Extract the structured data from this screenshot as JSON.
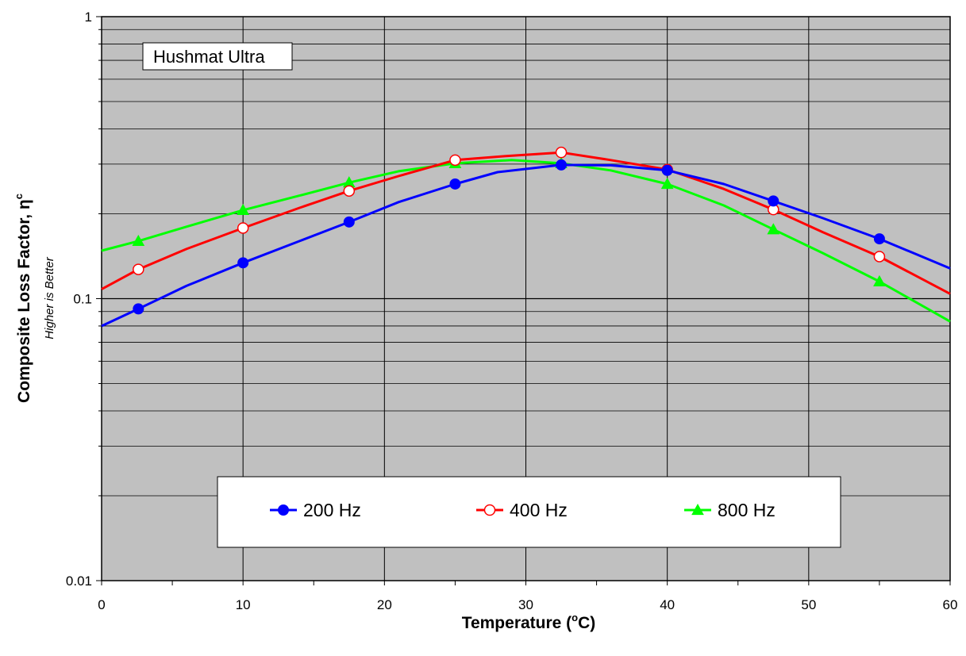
{
  "chart_data": {
    "type": "line",
    "annotation": "Hushmat Ultra",
    "xlabel": "Temperature (°C)",
    "xlabel_main": "Temperature (",
    "xlabel_sup": "o",
    "xlabel_unit": "C)",
    "ylabel": "Composite Loss Factor,  ηc",
    "ylabel_main": "Composite Loss Factor,  η",
    "ylabel_sup": "c",
    "ylabel_sub": "Higher is Better",
    "xlim": [
      0,
      60
    ],
    "ylim": [
      0.01,
      1
    ],
    "yscale": "log",
    "x_ticks": [
      0,
      10,
      20,
      30,
      40,
      50,
      60
    ],
    "x_tick_labels": [
      "0",
      "10",
      "20",
      "30",
      "40",
      "50",
      "60"
    ],
    "y_ticks": [
      0.01,
      0.1,
      1
    ],
    "y_tick_labels": [
      "0.01",
      "0.1",
      "1"
    ],
    "grid": true,
    "legend_position": "bottom-center",
    "series": [
      {
        "name": "200 Hz",
        "color": "#0000ff",
        "marker": "filled-circle",
        "x": [
          2.6,
          10,
          17.5,
          25,
          32.5,
          40,
          47.5,
          55
        ],
        "y": [
          0.092,
          0.134,
          0.187,
          0.255,
          0.298,
          0.285,
          0.222,
          0.163
        ],
        "curve": [
          [
            0,
            0.08
          ],
          [
            2.6,
            0.092
          ],
          [
            6,
            0.111
          ],
          [
            10,
            0.134
          ],
          [
            14,
            0.16
          ],
          [
            17.5,
            0.187
          ],
          [
            21,
            0.22
          ],
          [
            25,
            0.255
          ],
          [
            28,
            0.281
          ],
          [
            32.5,
            0.298
          ],
          [
            36,
            0.297
          ],
          [
            40,
            0.285
          ],
          [
            44,
            0.255
          ],
          [
            47.5,
            0.222
          ],
          [
            51,
            0.193
          ],
          [
            55,
            0.163
          ],
          [
            60,
            0.128
          ]
        ]
      },
      {
        "name": "400 Hz",
        "color": "#ff0000",
        "marker": "open-circle",
        "x": [
          2.6,
          10,
          17.5,
          25,
          32.5,
          40,
          47.5,
          55
        ],
        "y": [
          0.127,
          0.178,
          0.241,
          0.31,
          0.33,
          0.287,
          0.207,
          0.141
        ],
        "curve": [
          [
            0,
            0.108
          ],
          [
            2.6,
            0.127
          ],
          [
            6,
            0.15
          ],
          [
            10,
            0.178
          ],
          [
            14,
            0.21
          ],
          [
            17.5,
            0.241
          ],
          [
            21,
            0.272
          ],
          [
            25,
            0.31
          ],
          [
            28.5,
            0.32
          ],
          [
            32.5,
            0.33
          ],
          [
            36,
            0.31
          ],
          [
            40,
            0.287
          ],
          [
            44,
            0.245
          ],
          [
            47.5,
            0.207
          ],
          [
            51,
            0.172
          ],
          [
            55,
            0.141
          ],
          [
            60,
            0.104
          ]
        ]
      },
      {
        "name": "800 Hz",
        "color": "#00ff00",
        "marker": "filled-triangle",
        "x": [
          2.6,
          10,
          17.5,
          25,
          32.5,
          40,
          47.5,
          55
        ],
        "y": [
          0.16,
          0.206,
          0.258,
          0.302,
          0.302,
          0.255,
          0.176,
          0.115
        ],
        "curve": [
          [
            0,
            0.148
          ],
          [
            2.6,
            0.16
          ],
          [
            6,
            0.18
          ],
          [
            10,
            0.206
          ],
          [
            14,
            0.232
          ],
          [
            17.5,
            0.258
          ],
          [
            21,
            0.283
          ],
          [
            25,
            0.302
          ],
          [
            29,
            0.31
          ],
          [
            32.5,
            0.302
          ],
          [
            36,
            0.285
          ],
          [
            40,
            0.255
          ],
          [
            44,
            0.214
          ],
          [
            47.5,
            0.176
          ],
          [
            51,
            0.145
          ],
          [
            55,
            0.115
          ],
          [
            60,
            0.083
          ]
        ]
      }
    ]
  }
}
